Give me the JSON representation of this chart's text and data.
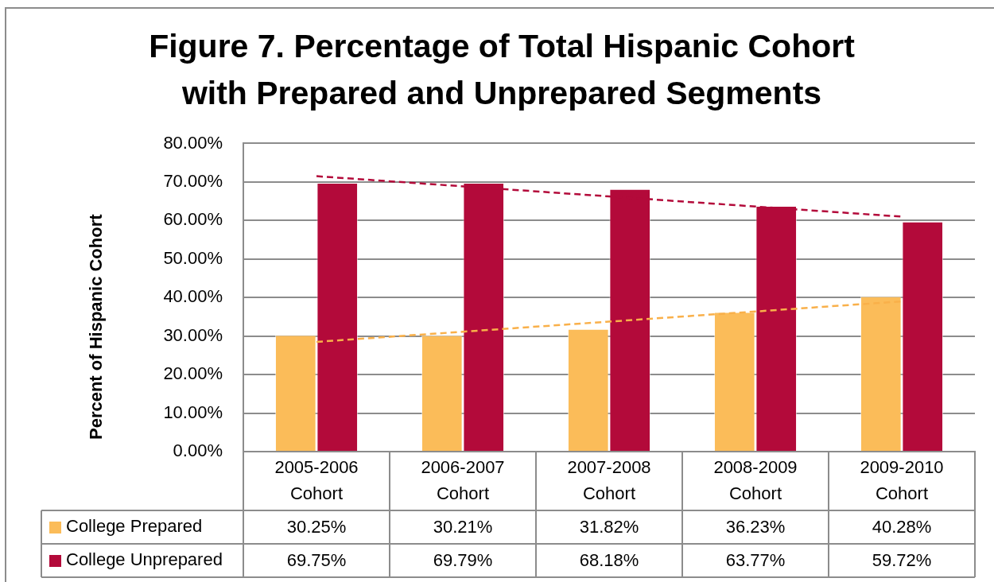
{
  "chart_data": {
    "type": "bar",
    "title": "Figure 7. Percentage of Total Hispanic Cohort with Prepared and Unprepared Segments",
    "ylabel": "Percent of Hispanic Cohort",
    "categories": [
      "2005-2006 Cohort",
      "2006-2007 Cohort",
      "2007-2008 Cohort",
      "2008-2009 Cohort",
      "2009-2010 Cohort"
    ],
    "series": [
      {
        "name": "College Prepared",
        "color": "#fbbc59",
        "values": [
          30.25,
          30.21,
          31.82,
          36.23,
          40.28
        ],
        "value_labels": [
          "30.25%",
          "30.21%",
          "31.82%",
          "36.23%",
          "40.28%"
        ]
      },
      {
        "name": "College Unprepared",
        "color": "#b30a3a",
        "values": [
          69.75,
          69.79,
          68.18,
          63.77,
          59.72
        ],
        "value_labels": [
          "69.75%",
          "69.79%",
          "68.18%",
          "63.77%",
          "59.72%"
        ]
      },
      {
        "type": "line",
        "color": "#f9b04a",
        "x": [
          "2005-2006 Cohort",
          "2009-2010 Cohort"
        ],
        "values": [
          28.5,
          39.0
        ],
        "line_style": "dashed"
      },
      {
        "type": "line",
        "color": "#b30a3a",
        "x": [
          "2005-2006 Cohort",
          "2009-2010 Cohort"
        ],
        "values": [
          71.5,
          61.0
        ],
        "line_style": "dashed"
      }
    ],
    "ylim": [
      0,
      80
    ],
    "yticks": [
      {
        "value": 0,
        "label": "0.00%"
      },
      {
        "value": 10,
        "label": "10.00%"
      },
      {
        "value": 20,
        "label": "20.00%"
      },
      {
        "value": 30,
        "label": "30.00%"
      },
      {
        "value": 40,
        "label": "40.00%"
      },
      {
        "value": 50,
        "label": "50.00%"
      },
      {
        "value": 60,
        "label": "60.00%"
      },
      {
        "value": 70,
        "label": "70.00%"
      },
      {
        "value": 80,
        "label": "80.00%"
      }
    ],
    "grid": "y",
    "legend": "bottom"
  }
}
